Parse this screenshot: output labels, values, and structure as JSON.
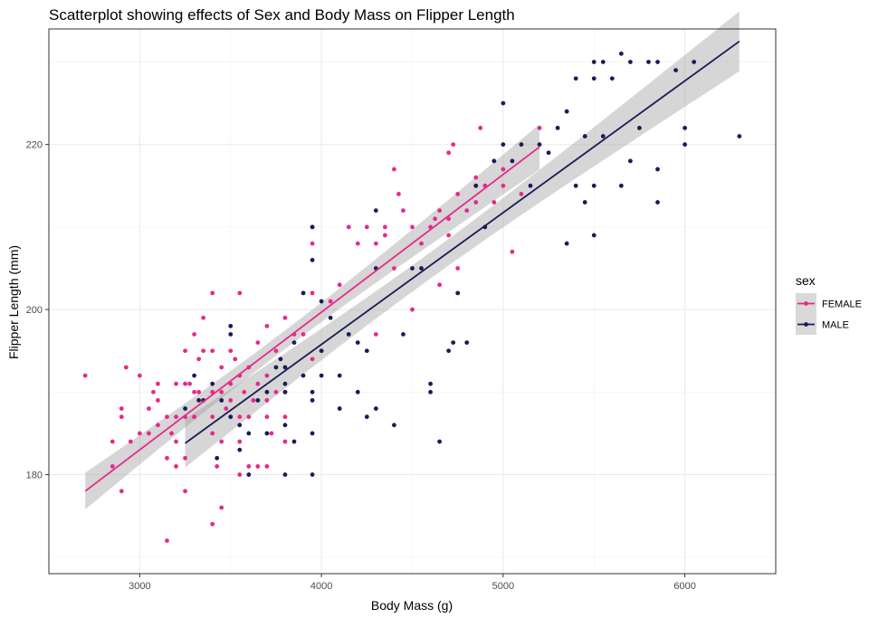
{
  "chart_data": {
    "type": "scatter",
    "title": "Scatterplot showing effects of Sex and Body Mass on Flipper Length",
    "xlabel": "Body Mass (g)",
    "ylabel": "Flipper Length (mm)",
    "xlim": [
      2500,
      6500
    ],
    "ylim": [
      168,
      234
    ],
    "xticks": [
      3000,
      4000,
      5000,
      6000
    ],
    "yticks": [
      180,
      200,
      220
    ],
    "grid": true,
    "legend": {
      "title": "sex",
      "placement": "right",
      "entries": [
        "FEMALE",
        "MALE"
      ]
    },
    "series": [
      {
        "name": "FEMALE",
        "color": "#e7298a",
        "trend": {
          "x": [
            2700,
            5200
          ],
          "y": [
            178,
            219.7
          ]
        },
        "points": [
          [
            2700,
            192
          ],
          [
            2850,
            181
          ],
          [
            2850,
            184
          ],
          [
            2900,
            178
          ],
          [
            2900,
            187
          ],
          [
            2900,
            188
          ],
          [
            2925,
            193
          ],
          [
            2950,
            184
          ],
          [
            3000,
            185
          ],
          [
            3000,
            192
          ],
          [
            3050,
            185
          ],
          [
            3050,
            188
          ],
          [
            3075,
            190
          ],
          [
            3100,
            186
          ],
          [
            3100,
            189
          ],
          [
            3100,
            191
          ],
          [
            3150,
            172
          ],
          [
            3150,
            182
          ],
          [
            3150,
            187
          ],
          [
            3175,
            185
          ],
          [
            3200,
            181
          ],
          [
            3200,
            184
          ],
          [
            3200,
            187
          ],
          [
            3200,
            191
          ],
          [
            3250,
            178
          ],
          [
            3250,
            182
          ],
          [
            3250,
            187
          ],
          [
            3250,
            191
          ],
          [
            3250,
            195
          ],
          [
            3275,
            191
          ],
          [
            3300,
            187
          ],
          [
            3300,
            190
          ],
          [
            3300,
            197
          ],
          [
            3325,
            190
          ],
          [
            3325,
            194
          ],
          [
            3350,
            195
          ],
          [
            3350,
            199
          ],
          [
            3400,
            174
          ],
          [
            3400,
            185
          ],
          [
            3400,
            187
          ],
          [
            3400,
            190
          ],
          [
            3400,
            195
          ],
          [
            3400,
            202
          ],
          [
            3425,
            181
          ],
          [
            3450,
            176
          ],
          [
            3450,
            184
          ],
          [
            3450,
            190
          ],
          [
            3450,
            193
          ],
          [
            3475,
            188
          ],
          [
            3500,
            189
          ],
          [
            3500,
            191
          ],
          [
            3500,
            195
          ],
          [
            3525,
            194
          ],
          [
            3550,
            180
          ],
          [
            3550,
            184
          ],
          [
            3550,
            187
          ],
          [
            3550,
            192
          ],
          [
            3550,
            202
          ],
          [
            3575,
            190
          ],
          [
            3600,
            181
          ],
          [
            3600,
            187
          ],
          [
            3600,
            193
          ],
          [
            3625,
            189
          ],
          [
            3650,
            181
          ],
          [
            3650,
            191
          ],
          [
            3650,
            196
          ],
          [
            3700,
            181
          ],
          [
            3700,
            187
          ],
          [
            3700,
            189
          ],
          [
            3700,
            192
          ],
          [
            3700,
            198
          ],
          [
            3725,
            185
          ],
          [
            3750,
            190
          ],
          [
            3750,
            195
          ],
          [
            3800,
            184
          ],
          [
            3800,
            187
          ],
          [
            3800,
            190
          ],
          [
            3800,
            199
          ],
          [
            3850,
            197
          ],
          [
            3900,
            197
          ],
          [
            3950,
            194
          ],
          [
            3950,
            202
          ],
          [
            3950,
            208
          ],
          [
            3950,
            210
          ],
          [
            4000,
            195
          ],
          [
            4050,
            201
          ],
          [
            4100,
            203
          ],
          [
            4150,
            210
          ],
          [
            4200,
            208
          ],
          [
            4250,
            210
          ],
          [
            4300,
            197
          ],
          [
            4300,
            208
          ],
          [
            4350,
            209
          ],
          [
            4350,
            210
          ],
          [
            4400,
            205
          ],
          [
            4400,
            217
          ],
          [
            4425,
            214
          ],
          [
            4450,
            212
          ],
          [
            4500,
            200
          ],
          [
            4500,
            210
          ],
          [
            4550,
            208
          ],
          [
            4600,
            210
          ],
          [
            4625,
            211
          ],
          [
            4650,
            203
          ],
          [
            4650,
            212
          ],
          [
            4700,
            209
          ],
          [
            4700,
            211
          ],
          [
            4700,
            219
          ],
          [
            4725,
            220
          ],
          [
            4750,
            205
          ],
          [
            4750,
            214
          ],
          [
            4800,
            212
          ],
          [
            4850,
            213
          ],
          [
            4850,
            215
          ],
          [
            4850,
            216
          ],
          [
            4875,
            222
          ],
          [
            4900,
            215
          ],
          [
            4950,
            213
          ],
          [
            5000,
            215
          ],
          [
            5000,
            217
          ],
          [
            5050,
            207
          ],
          [
            5100,
            214
          ],
          [
            5200,
            222
          ]
        ]
      },
      {
        "name": "MALE",
        "color": "#1b1b58",
        "trend": {
          "x": [
            3250,
            6300
          ],
          "y": [
            183.8,
            232.5
          ]
        },
        "points": [
          [
            3250,
            188
          ],
          [
            3300,
            192
          ],
          [
            3325,
            189
          ],
          [
            3350,
            189
          ],
          [
            3400,
            191
          ],
          [
            3425,
            182
          ],
          [
            3450,
            189
          ],
          [
            3500,
            187
          ],
          [
            3500,
            197
          ],
          [
            3500,
            198
          ],
          [
            3550,
            183
          ],
          [
            3550,
            186
          ],
          [
            3600,
            180
          ],
          [
            3600,
            185
          ],
          [
            3650,
            189
          ],
          [
            3700,
            185
          ],
          [
            3700,
            190
          ],
          [
            3750,
            193
          ],
          [
            3775,
            194
          ],
          [
            3800,
            180
          ],
          [
            3800,
            186
          ],
          [
            3800,
            190
          ],
          [
            3800,
            191
          ],
          [
            3800,
            193
          ],
          [
            3850,
            184
          ],
          [
            3850,
            196
          ],
          [
            3900,
            192
          ],
          [
            3900,
            202
          ],
          [
            3950,
            180
          ],
          [
            3950,
            185
          ],
          [
            3950,
            189
          ],
          [
            3950,
            190
          ],
          [
            3950,
            206
          ],
          [
            3950,
            210
          ],
          [
            4000,
            192
          ],
          [
            4000,
            195
          ],
          [
            4000,
            201
          ],
          [
            4050,
            199
          ],
          [
            4100,
            192
          ],
          [
            4100,
            188
          ],
          [
            4150,
            197
          ],
          [
            4200,
            190
          ],
          [
            4200,
            196
          ],
          [
            4250,
            187
          ],
          [
            4250,
            195
          ],
          [
            4300,
            188
          ],
          [
            4300,
            205
          ],
          [
            4300,
            212
          ],
          [
            4400,
            186
          ],
          [
            4450,
            197
          ],
          [
            4500,
            205
          ],
          [
            4550,
            205
          ],
          [
            4600,
            190
          ],
          [
            4600,
            191
          ],
          [
            4650,
            184
          ],
          [
            4700,
            195
          ],
          [
            4725,
            196
          ],
          [
            4750,
            202
          ],
          [
            4800,
            196
          ],
          [
            4850,
            215
          ],
          [
            4900,
            210
          ],
          [
            4950,
            218
          ],
          [
            5000,
            220
          ],
          [
            5000,
            225
          ],
          [
            5050,
            218
          ],
          [
            5100,
            220
          ],
          [
            5150,
            215
          ],
          [
            5200,
            220
          ],
          [
            5250,
            219
          ],
          [
            5300,
            222
          ],
          [
            5350,
            208
          ],
          [
            5350,
            224
          ],
          [
            5400,
            215
          ],
          [
            5400,
            228
          ],
          [
            5450,
            213
          ],
          [
            5450,
            221
          ],
          [
            5500,
            209
          ],
          [
            5500,
            215
          ],
          [
            5500,
            228
          ],
          [
            5500,
            230
          ],
          [
            5550,
            221
          ],
          [
            5550,
            230
          ],
          [
            5600,
            228
          ],
          [
            5650,
            215
          ],
          [
            5650,
            231
          ],
          [
            5700,
            218
          ],
          [
            5700,
            230
          ],
          [
            5750,
            222
          ],
          [
            5800,
            230
          ],
          [
            5850,
            213
          ],
          [
            5850,
            217
          ],
          [
            5850,
            230
          ],
          [
            5950,
            229
          ],
          [
            6000,
            220
          ],
          [
            6000,
            222
          ],
          [
            6050,
            230
          ],
          [
            6300,
            221
          ]
        ]
      }
    ]
  }
}
